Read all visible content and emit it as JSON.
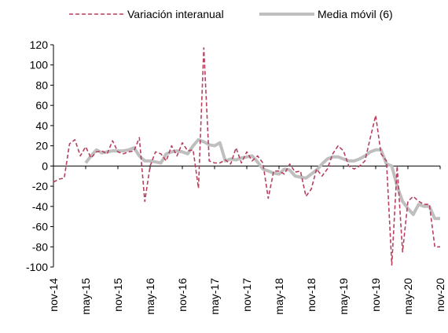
{
  "chart_data": {
    "type": "line",
    "categories": [
      "nov-14",
      null,
      null,
      null,
      null,
      null,
      "may-15",
      null,
      null,
      null,
      null,
      null,
      "nov-15",
      null,
      null,
      null,
      null,
      null,
      "may-16",
      null,
      null,
      null,
      null,
      null,
      "nov-16",
      null,
      null,
      null,
      null,
      null,
      "may-17",
      null,
      null,
      null,
      null,
      null,
      "nov-17",
      null,
      null,
      null,
      null,
      null,
      "may-18",
      null,
      null,
      null,
      null,
      null,
      "nov-18",
      null,
      null,
      null,
      null,
      null,
      "may-19",
      null,
      null,
      null,
      null,
      null,
      "nov-19",
      null,
      null,
      null,
      null,
      null,
      "may-20",
      null,
      null,
      null,
      null,
      null,
      "nov-20"
    ],
    "series": [
      {
        "name": "Variación interanual",
        "color": "#b8405f",
        "dashed": true,
        "values": [
          -16,
          -13,
          -12,
          22,
          26,
          10,
          19,
          8,
          14,
          15,
          12,
          25,
          14,
          12,
          14,
          15,
          28,
          -35,
          0,
          14,
          12,
          5,
          20,
          10,
          23,
          15,
          16,
          -22,
          117,
          5,
          3,
          3,
          6,
          2,
          18,
          3,
          14,
          5,
          10,
          3,
          -32,
          -5,
          -5,
          -8,
          2,
          -6,
          -5,
          -30,
          -23,
          -3,
          -10,
          -3,
          12,
          20,
          15,
          0,
          -3,
          0,
          5,
          28,
          50,
          12,
          5,
          -98,
          0,
          -85,
          -35,
          -30,
          -35,
          -38,
          -38,
          -80,
          -80
        ]
      },
      {
        "name": "Media móvil (6)",
        "color": "#bfbfbf",
        "dashed": false,
        "values": [
          null,
          null,
          null,
          null,
          null,
          null,
          3,
          10,
          16,
          13,
          14,
          15,
          15,
          15,
          16,
          18,
          10,
          5,
          5,
          4,
          3,
          12,
          14,
          15,
          14,
          12,
          20,
          26,
          24,
          21,
          20,
          23,
          5,
          7,
          6,
          8,
          9,
          10,
          4,
          -3,
          -5,
          -7,
          -8,
          -3,
          -4,
          -10,
          -11,
          -12,
          -8,
          -4,
          2,
          7,
          9,
          9,
          7,
          5,
          5,
          7,
          10,
          14,
          16,
          16,
          2,
          0,
          -20,
          -35,
          -42,
          -48,
          -38,
          -40,
          -40,
          -52,
          -52
        ]
      }
    ],
    "ylim": [
      -100,
      120
    ],
    "yticks": [
      -100,
      -80,
      -60,
      -40,
      -20,
      0,
      20,
      40,
      60,
      80,
      100,
      120
    ]
  }
}
